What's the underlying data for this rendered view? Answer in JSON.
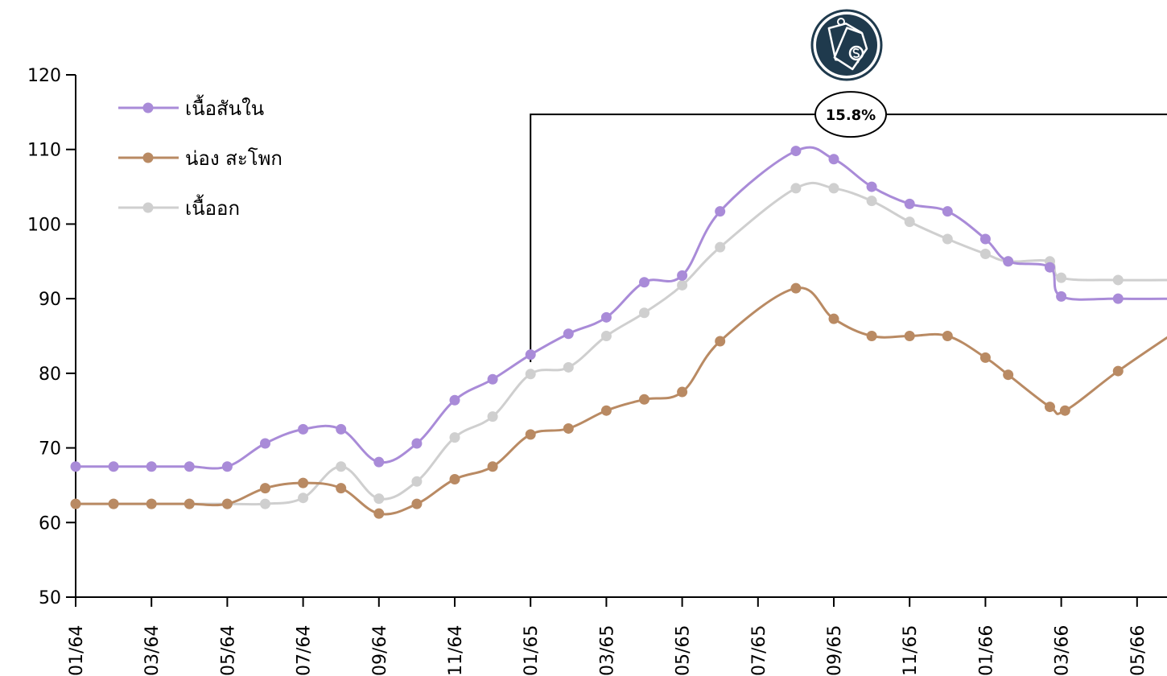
{
  "chart_data": {
    "type": "line",
    "title": "",
    "xlabel": "",
    "ylabel": "",
    "ylim": [
      50,
      120
    ],
    "yticks": [
      50,
      60,
      70,
      80,
      90,
      100,
      110,
      120
    ],
    "x_tick_labels": [
      "01/64",
      "03/64",
      "05/64",
      "07/64",
      "09/64",
      "11/64",
      "01/65",
      "03/65",
      "05/65",
      "07/65",
      "09/65",
      "11/65",
      "01/66",
      "03/66",
      "05/66"
    ],
    "legend_position": "top-left",
    "grid": false,
    "series": [
      {
        "name": "เนื้อสันใน",
        "color": "#a98bd8",
        "points": [
          [
            0,
            67.5
          ],
          [
            1,
            67.5
          ],
          [
            2,
            67.5
          ],
          [
            3,
            67.5
          ],
          [
            4,
            67.5
          ],
          [
            5,
            70.6
          ],
          [
            6,
            72.5
          ],
          [
            7,
            72.5
          ],
          [
            8,
            68.1
          ],
          [
            9,
            70.6
          ],
          [
            10,
            76.4
          ],
          [
            11,
            79.2
          ],
          [
            12,
            82.5
          ],
          [
            13,
            85.3
          ],
          [
            14,
            87.5
          ],
          [
            15,
            92.2
          ],
          [
            16,
            93.1
          ],
          [
            17,
            101.7
          ],
          [
            19,
            109.8
          ],
          [
            20,
            108.7
          ],
          [
            21,
            105
          ],
          [
            22,
            102.7
          ],
          [
            23,
            101.7
          ],
          [
            24,
            98
          ],
          [
            24.6,
            95
          ],
          [
            25.7,
            94.2
          ],
          [
            26,
            90.3
          ],
          [
            27.5,
            90
          ],
          [
            29,
            90
          ]
        ]
      },
      {
        "name": "น่อง สะโพก",
        "color": "#b98a63",
        "points": [
          [
            0,
            62.5
          ],
          [
            1,
            62.5
          ],
          [
            2,
            62.5
          ],
          [
            3,
            62.5
          ],
          [
            4,
            62.5
          ],
          [
            5,
            64.6
          ],
          [
            6,
            65.3
          ],
          [
            7,
            64.6
          ],
          [
            8,
            61.2
          ],
          [
            9,
            62.5
          ],
          [
            10,
            65.8
          ],
          [
            11,
            67.5
          ],
          [
            12,
            71.8
          ],
          [
            13,
            72.6
          ],
          [
            14,
            75
          ],
          [
            15,
            76.5
          ],
          [
            16,
            77.5
          ],
          [
            17,
            84.3
          ],
          [
            19,
            91.4
          ],
          [
            20,
            87.3
          ],
          [
            21,
            85
          ],
          [
            22,
            85
          ],
          [
            23,
            85
          ],
          [
            24,
            82.1
          ],
          [
            24.6,
            79.8
          ],
          [
            25.7,
            75.5
          ],
          [
            26.1,
            75
          ],
          [
            27.5,
            80.3
          ],
          [
            29,
            85.5
          ]
        ]
      },
      {
        "name": "เนื้ออก",
        "color": "#cfcfcf",
        "points": [
          [
            0,
            62.5
          ],
          [
            1,
            62.5
          ],
          [
            2,
            62.5
          ],
          [
            3,
            62.5
          ],
          [
            4,
            62.5
          ],
          [
            5,
            62.5
          ],
          [
            6,
            63.3
          ],
          [
            7,
            67.5
          ],
          [
            8,
            63.2
          ],
          [
            9,
            65.5
          ],
          [
            10,
            71.4
          ],
          [
            11,
            74.2
          ],
          [
            12,
            79.9
          ],
          [
            13,
            80.8
          ],
          [
            14,
            85
          ],
          [
            15,
            88.1
          ],
          [
            16,
            91.8
          ],
          [
            17,
            96.9
          ],
          [
            19,
            104.8
          ],
          [
            20,
            104.8
          ],
          [
            21,
            103.1
          ],
          [
            22,
            100.3
          ],
          [
            23,
            98
          ],
          [
            24,
            96
          ],
          [
            24.6,
            95
          ],
          [
            25.7,
            95
          ],
          [
            26,
            92.8
          ],
          [
            27.5,
            92.5
          ],
          [
            29,
            92.5
          ]
        ]
      }
    ],
    "annotations": [
      {
        "label": "15.8%",
        "icon": "price-tag-icon"
      }
    ]
  }
}
